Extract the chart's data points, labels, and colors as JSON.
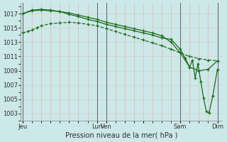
{
  "bg_color": "#cce8e8",
  "line_color": "#1a6b1a",
  "xlabel": "Pression niveau de la mer( hPa )",
  "ylim": [
    1002,
    1018.5
  ],
  "xlim": [
    -0.2,
    21.5
  ],
  "yticks": [
    1003,
    1005,
    1007,
    1009,
    1011,
    1013,
    1015,
    1017
  ],
  "day_x": [
    0,
    8,
    9,
    13,
    17,
    21
  ],
  "day_labels": [
    "Jeu",
    "Lun",
    "Ven",
    "",
    "Sam",
    "Dim"
  ],
  "vline_x": [
    0,
    8,
    9,
    17,
    21
  ],
  "line1_x": [
    0,
    0.5,
    1,
    1.5,
    2,
    3,
    4,
    5,
    6,
    7,
    8,
    9,
    10,
    11,
    12,
    13,
    14,
    15,
    16,
    17,
    18,
    19,
    20,
    21
  ],
  "line1_y": [
    1014.3,
    1014.5,
    1014.7,
    1015.0,
    1015.3,
    1015.6,
    1015.7,
    1015.8,
    1015.7,
    1015.5,
    1015.3,
    1014.9,
    1014.5,
    1014.1,
    1013.7,
    1013.3,
    1012.9,
    1012.5,
    1012.0,
    1011.5,
    1011.0,
    1010.7,
    1010.5,
    1010.4
  ],
  "line2_x": [
    0,
    1,
    2,
    3,
    4,
    5,
    6,
    7,
    8,
    9,
    10,
    11,
    12,
    13,
    14,
    15,
    16,
    17,
    18,
    19,
    20,
    21
  ],
  "line2_y": [
    1017.0,
    1017.4,
    1017.5,
    1017.4,
    1017.3,
    1017.1,
    1016.8,
    1016.5,
    1016.2,
    1015.8,
    1015.5,
    1015.2,
    1014.9,
    1014.6,
    1014.3,
    1013.9,
    1013.0,
    1011.5,
    1009.5,
    1009.0,
    1009.2,
    1010.4
  ],
  "line3_x": [
    0,
    1,
    2,
    3,
    4,
    5,
    6,
    7,
    8,
    9,
    10,
    11,
    12,
    13,
    14,
    15,
    16,
    17,
    17.5,
    18,
    18.3,
    18.6,
    18.9,
    19.2,
    19.5,
    19.8,
    20.1,
    20.5,
    21
  ],
  "line3_y": [
    1017.0,
    1017.5,
    1017.6,
    1017.5,
    1017.3,
    1016.9,
    1016.6,
    1016.2,
    1015.9,
    1015.5,
    1015.2,
    1014.9,
    1014.6,
    1014.3,
    1014.0,
    1013.6,
    1013.4,
    1012.0,
    1010.8,
    1009.5,
    1010.5,
    1008.0,
    1010.0,
    1007.5,
    1005.2,
    1003.3,
    1003.1,
    1005.5,
    1009.2
  ]
}
